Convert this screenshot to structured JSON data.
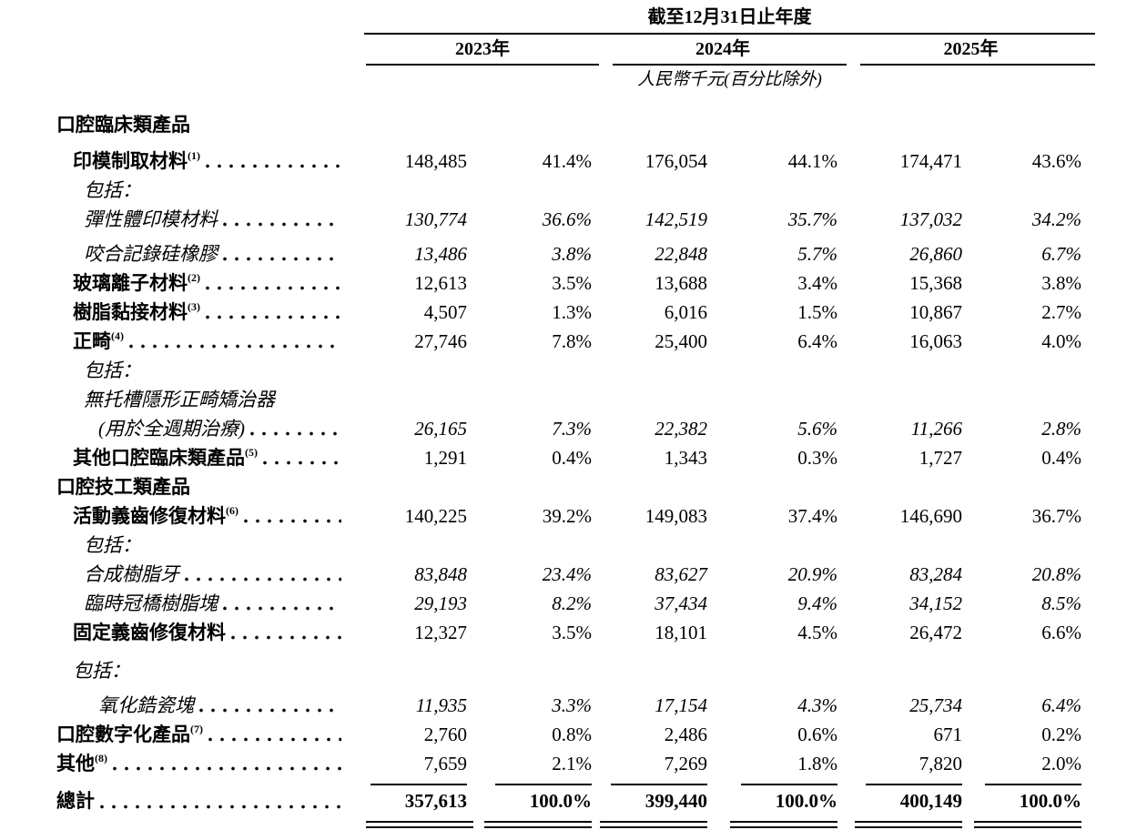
{
  "page": {
    "background_color": "#ffffff",
    "text_color": "#000000"
  },
  "table": {
    "title": "截至12月31日止年度",
    "unit_note": "人民幣千元(百分比除外)",
    "year_columns": [
      "2023年",
      "2024年",
      "2025年"
    ],
    "value_column_pattern": [
      "amount",
      "percent"
    ],
    "rows": [
      {
        "type": "section",
        "label": "口腔臨床類產品",
        "indent": 0
      },
      {
        "type": "data",
        "label": "印模制取材料",
        "sup": "(1)",
        "indent": 1,
        "style": "bold",
        "space_before": "sp8",
        "values": [
          "148,485",
          "41.4%",
          "176,054",
          "44.1%",
          "174,471",
          "43.6%"
        ]
      },
      {
        "type": "label",
        "label": "包括：",
        "indent": 2,
        "style": "italic"
      },
      {
        "type": "data",
        "label": "彈性體印模材料",
        "indent": 2,
        "style": "italic",
        "values": [
          "130,774",
          "36.6%",
          "142,519",
          "35.7%",
          "137,032",
          "34.2%"
        ]
      },
      {
        "type": "data",
        "label": "咬合記錄硅橡膠",
        "indent": 2,
        "style": "italic",
        "space_before": "sp6",
        "values": [
          "13,486",
          "3.8%",
          "22,848",
          "5.7%",
          "26,860",
          "6.7%"
        ]
      },
      {
        "type": "data",
        "label": "玻璃離子材料",
        "sup": "(2)",
        "indent": 1,
        "style": "bold",
        "values": [
          "12,613",
          "3.5%",
          "13,688",
          "3.4%",
          "15,368",
          "3.8%"
        ]
      },
      {
        "type": "data",
        "label": "樹脂黏接材料",
        "sup": "(3)",
        "indent": 1,
        "style": "bold",
        "values": [
          "4,507",
          "1.3%",
          "6,016",
          "1.5%",
          "10,867",
          "2.7%"
        ]
      },
      {
        "type": "data",
        "label": "正畸",
        "sup": "(4)",
        "indent": 1,
        "style": "bold",
        "values": [
          "27,746",
          "7.8%",
          "25,400",
          "6.4%",
          "16,063",
          "4.0%"
        ]
      },
      {
        "type": "label",
        "label": "包括：",
        "indent": 2,
        "style": "italic"
      },
      {
        "type": "label",
        "label": "無托槽隱形正畸矯治器",
        "indent": 2,
        "style": "italic"
      },
      {
        "type": "data",
        "label": "(用於全週期治療)",
        "indent": 3,
        "style": "italic",
        "values": [
          "26,165",
          "7.3%",
          "22,382",
          "5.6%",
          "11,266",
          "2.8%"
        ]
      },
      {
        "type": "data",
        "label": "其他口腔臨床類產品",
        "sup": "(5)",
        "indent": 1,
        "style": "bold",
        "values": [
          "1,291",
          "0.4%",
          "1,343",
          "0.3%",
          "1,727",
          "0.4%"
        ]
      },
      {
        "type": "section",
        "label": "口腔技工類產品",
        "indent": 0
      },
      {
        "type": "data",
        "label": "活動義齒修復材料",
        "sup": "(6)",
        "indent": 1,
        "style": "bold",
        "values": [
          "140,225",
          "39.2%",
          "149,083",
          "37.4%",
          "146,690",
          "36.7%"
        ]
      },
      {
        "type": "label",
        "label": "包括：",
        "indent": 2,
        "style": "italic"
      },
      {
        "type": "data",
        "label": "合成樹脂牙",
        "indent": 2,
        "style": "italic",
        "values": [
          "83,848",
          "23.4%",
          "83,627",
          "20.9%",
          "83,284",
          "20.8%"
        ]
      },
      {
        "type": "data",
        "label": "臨時冠橋樹脂塊",
        "indent": 2,
        "style": "italic",
        "values": [
          "29,193",
          "8.2%",
          "37,434",
          "9.4%",
          "34,152",
          "8.5%"
        ]
      },
      {
        "type": "data",
        "label": "固定義齒修復材料",
        "indent": 1,
        "style": "bold",
        "values": [
          "12,327",
          "3.5%",
          "18,101",
          "4.5%",
          "26,472",
          "6.6%"
        ]
      },
      {
        "type": "label",
        "label": "包括：",
        "indent": 1,
        "style": "italic",
        "space_before": "sp10"
      },
      {
        "type": "data",
        "label": "氧化鋯瓷塊",
        "indent": 3,
        "style": "italic",
        "space_before": "sp6",
        "values": [
          "11,935",
          "3.3%",
          "17,154",
          "4.3%",
          "25,734",
          "6.4%"
        ]
      },
      {
        "type": "data",
        "label": "口腔數字化產品",
        "sup": "(7)",
        "indent": 0,
        "style": "bold",
        "values": [
          "2,760",
          "0.8%",
          "2,486",
          "0.6%",
          "671",
          "0.2%"
        ]
      },
      {
        "type": "data",
        "label": "其他",
        "sup": "(8)",
        "indent": 0,
        "style": "bold",
        "values": [
          "7,659",
          "2.1%",
          "7,269",
          "1.8%",
          "7,820",
          "2.0%"
        ]
      },
      {
        "type": "total",
        "label": "總計",
        "indent": 0,
        "style": "bold",
        "values": [
          "357,613",
          "100.0%",
          "399,440",
          "100.0%",
          "400,149",
          "100.0%"
        ]
      }
    ]
  }
}
